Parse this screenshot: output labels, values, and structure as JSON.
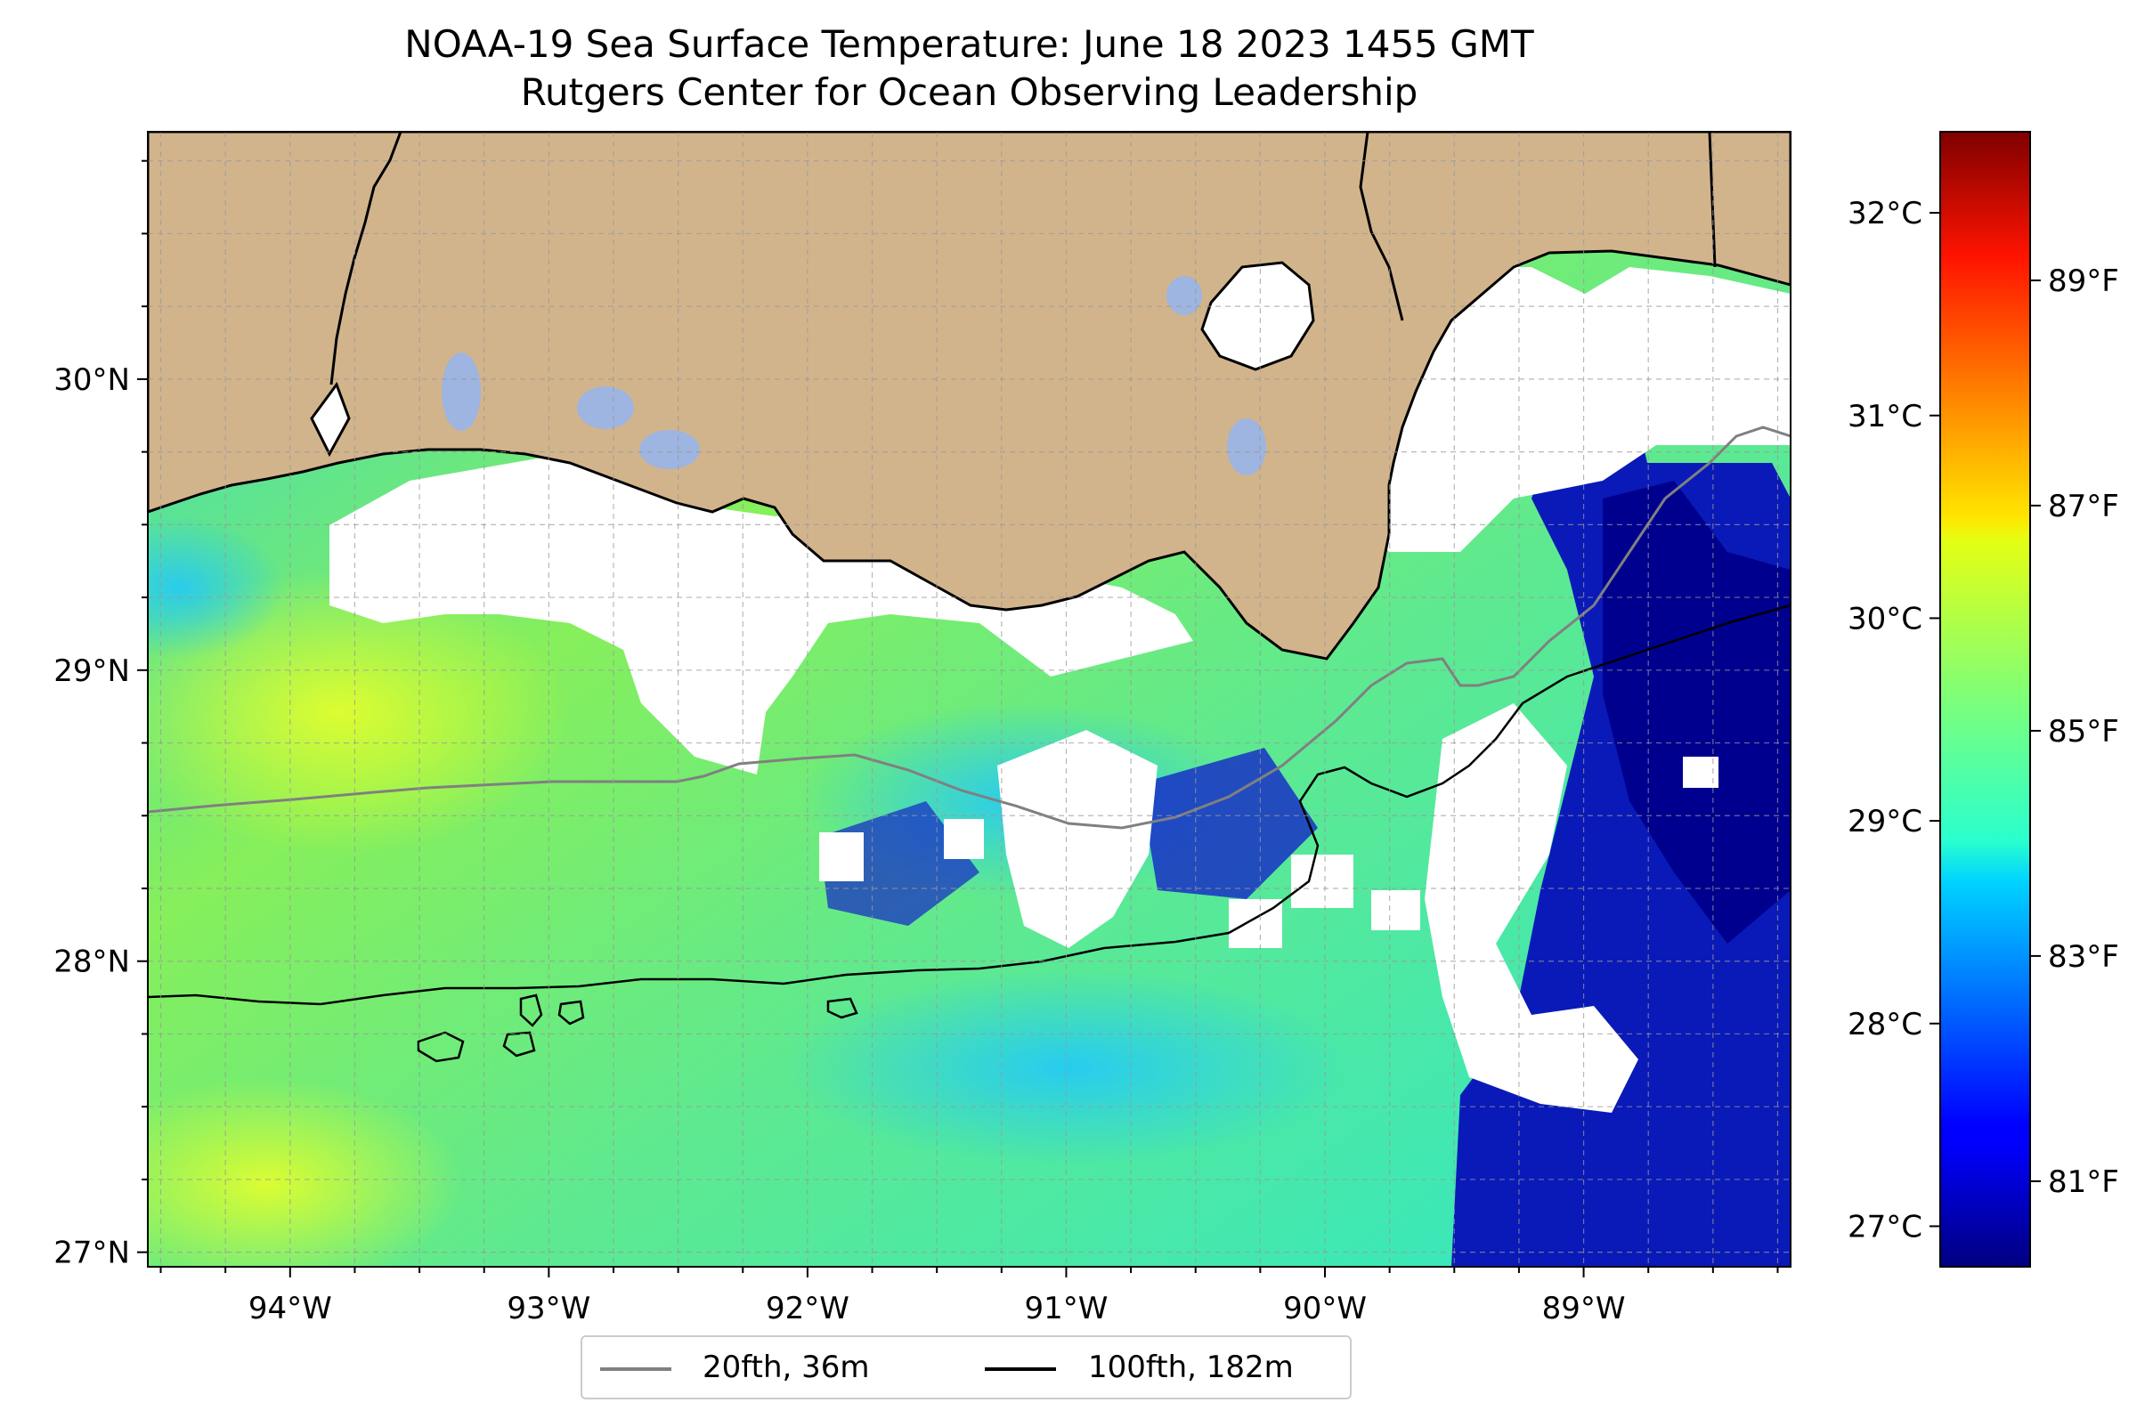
{
  "title": {
    "line1": "NOAA-19 Sea Surface Temperature: June 18 2023 1455 GMT",
    "line2": "Rutgers Center for Ocean Observing Leadership"
  },
  "map": {
    "lon_range": [
      -94.55,
      -88.2
    ],
    "lat_range": [
      26.95,
      30.85
    ],
    "lon_ticks": [
      {
        "value": -94,
        "label": "94°W"
      },
      {
        "value": -93,
        "label": "93°W"
      },
      {
        "value": -92,
        "label": "92°W"
      },
      {
        "value": -91,
        "label": "91°W"
      },
      {
        "value": -90,
        "label": "90°W"
      },
      {
        "value": -89,
        "label": "89°W"
      }
    ],
    "lat_ticks": [
      {
        "value": 27,
        "label": "27°N"
      },
      {
        "value": 28,
        "label": "28°N"
      },
      {
        "value": 29,
        "label": "29°N"
      },
      {
        "value": 30,
        "label": "30°N"
      }
    ],
    "grid": "dashed",
    "colors": {
      "land": "#d2b48c",
      "lakes": "#9db5e0",
      "coastline": "#000000",
      "cloud_mask": "#ffffff",
      "isobath_20": "#808080",
      "isobath_100": "#000000"
    }
  },
  "legend": {
    "placement": "bottom-center",
    "items": [
      {
        "label": "20fth, 36m",
        "color": "#808080"
      },
      {
        "label": "100fth, 182m",
        "color": "#000000"
      }
    ]
  },
  "colorbar": {
    "colormap": "jet",
    "range_c": [
      26.8,
      32.4
    ],
    "celsius_ticks": [
      {
        "value": 27,
        "label": "27°C"
      },
      {
        "value": 28,
        "label": "28°C"
      },
      {
        "value": 29,
        "label": "29°C"
      },
      {
        "value": 30,
        "label": "30°C"
      },
      {
        "value": 31,
        "label": "31°C"
      },
      {
        "value": 32,
        "label": "32°C"
      }
    ],
    "fahrenheit_ticks": [
      {
        "value": 81,
        "label": "81°F"
      },
      {
        "value": 83,
        "label": "83°F"
      },
      {
        "value": 85,
        "label": "85°F"
      },
      {
        "value": 87,
        "label": "87°F"
      },
      {
        "value": 89,
        "label": "89°F"
      }
    ]
  }
}
